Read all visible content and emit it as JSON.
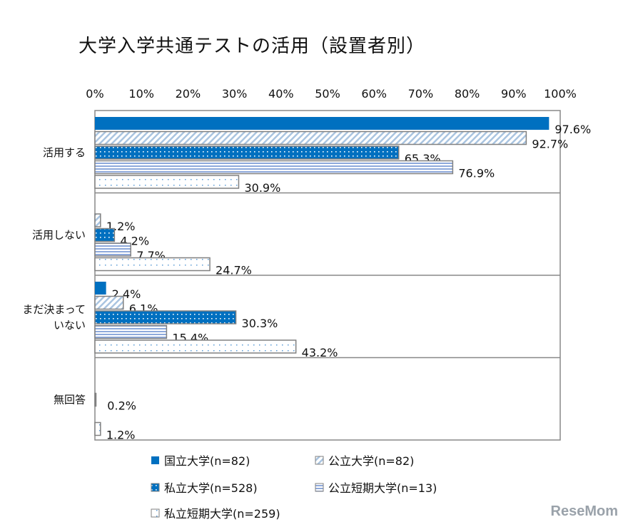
{
  "chart_data": {
    "type": "bar",
    "orientation": "horizontal",
    "title": "大学入学共通テストの活用（設置者別）",
    "categories": [
      "活用する",
      "活用しない",
      "まだ決まって\nいない",
      "無回答"
    ],
    "xlim": [
      0,
      100
    ],
    "ticks": [
      "0%",
      "10%",
      "20%",
      "30%",
      "40%",
      "50%",
      "60%",
      "70%",
      "80%",
      "90%",
      "100%"
    ],
    "grid": false,
    "legend_position": "bottom",
    "series": [
      {
        "name": "国立大学(n=82)",
        "values": [
          97.6,
          0,
          2.4,
          0
        ],
        "labels": [
          "97.6%",
          null,
          "2.4%",
          null
        ],
        "color": "#0070C0",
        "pattern": "solid"
      },
      {
        "name": "公立大学(n=82)",
        "values": [
          92.7,
          1.2,
          6.1,
          0
        ],
        "labels": [
          "92.7%",
          "1.2%",
          "6.1%",
          null
        ],
        "color": "#A9C4E0",
        "pattern": "diagonal-hatch"
      },
      {
        "name": "私立大学(n=528)",
        "values": [
          65.3,
          4.2,
          30.3,
          0.2
        ],
        "labels": [
          "65.3%",
          "4.2%",
          "30.3%",
          "0.2%"
        ],
        "color": "#0070C0",
        "pattern": "dots-on-blue"
      },
      {
        "name": "公立短期大学(n=13)",
        "values": [
          76.9,
          7.7,
          15.4,
          0
        ],
        "labels": [
          "76.9%",
          "7.7%",
          "15.4%",
          null
        ],
        "color": "#8EA9DB",
        "pattern": "horizontal-lines"
      },
      {
        "name": "私立短期大学(n=259)",
        "values": [
          30.9,
          24.7,
          43.2,
          1.2
        ],
        "labels": [
          "30.9%",
          "24.7%",
          "43.2%",
          "1.2%"
        ],
        "color": "#9DC3E6",
        "pattern": "dots-on-white"
      }
    ]
  },
  "watermark": "ReseMom"
}
